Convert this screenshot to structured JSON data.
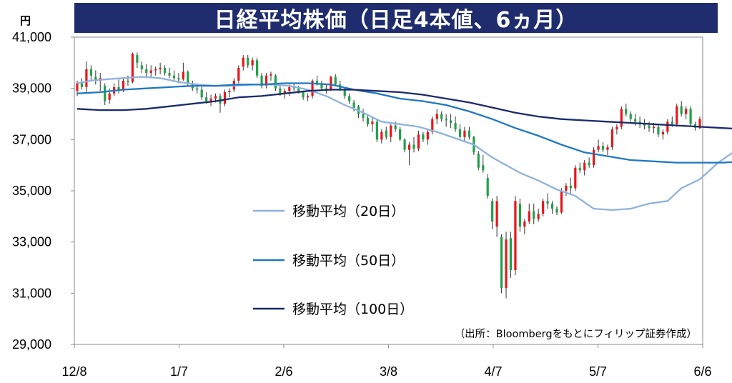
{
  "chart_data": {
    "type": "candlestick",
    "title": "日経平均株価（日足4本値、6ヵ月）",
    "y_unit": "円",
    "ylim": [
      29000,
      41000
    ],
    "y_ticks": [
      "41,000",
      "39,000",
      "37,000",
      "35,000",
      "33,000",
      "31,000",
      "29,000"
    ],
    "y_tick_values": [
      41000,
      39000,
      37000,
      35000,
      33000,
      31000,
      29000
    ],
    "x_ticks": [
      "12/8",
      "1/7",
      "2/6",
      "3/8",
      "4/7",
      "5/7",
      "6/6"
    ],
    "x_range": [
      "2024-12-08",
      "2025-06-06"
    ],
    "source": "（出所：Bloombergをもとにフィリップ証券作成）",
    "colors": {
      "up": "#e8161b",
      "down": "#21a14a",
      "ma20": "#8fb2dd",
      "ma50": "#1f78c1",
      "ma100": "#1b2a6b",
      "title_bg": "#1f2d6e"
    },
    "series": [
      {
        "name": "移動平均（20日）",
        "color": "#8fb2dd",
        "points": [
          [
            0,
            39200
          ],
          [
            3,
            39300
          ],
          [
            6,
            39350
          ],
          [
            10,
            39400
          ],
          [
            14,
            39450
          ],
          [
            18,
            39400
          ],
          [
            22,
            39250
          ],
          [
            26,
            39150
          ],
          [
            30,
            39100
          ],
          [
            34,
            39100
          ],
          [
            38,
            39150
          ],
          [
            42,
            39150
          ],
          [
            46,
            39100
          ],
          [
            50,
            38950
          ],
          [
            54,
            38700
          ],
          [
            58,
            38350
          ],
          [
            62,
            38050
          ],
          [
            66,
            37700
          ],
          [
            70,
            37600
          ],
          [
            74,
            37500
          ],
          [
            78,
            37300
          ],
          [
            82,
            37050
          ],
          [
            86,
            36800
          ],
          [
            90,
            36300
          ],
          [
            94,
            35900
          ],
          [
            96,
            35700
          ],
          [
            100,
            35400
          ],
          [
            104,
            35050
          ],
          [
            108,
            34800
          ],
          [
            112,
            34300
          ],
          [
            116,
            34250
          ],
          [
            120,
            34300
          ],
          [
            124,
            34500
          ],
          [
            128,
            34600
          ],
          [
            131,
            35100
          ],
          [
            135,
            35450
          ],
          [
            139,
            36100
          ],
          [
            143,
            36600
          ],
          [
            147,
            36900
          ],
          [
            151,
            37100
          ],
          [
            155,
            37300
          ],
          [
            159,
            37600
          ],
          [
            163,
            37750
          ]
        ]
      },
      {
        "name": "移動平均（50日）",
        "color": "#1f78c1",
        "points": [
          [
            0,
            38800
          ],
          [
            5,
            38850
          ],
          [
            10,
            38950
          ],
          [
            15,
            39000
          ],
          [
            20,
            39050
          ],
          [
            25,
            39100
          ],
          [
            30,
            39100
          ],
          [
            35,
            39150
          ],
          [
            40,
            39150
          ],
          [
            45,
            39200
          ],
          [
            50,
            39200
          ],
          [
            55,
            39150
          ],
          [
            60,
            38950
          ],
          [
            65,
            38800
          ],
          [
            70,
            38600
          ],
          [
            75,
            38500
          ],
          [
            80,
            38350
          ],
          [
            85,
            38100
          ],
          [
            90,
            37800
          ],
          [
            95,
            37450
          ],
          [
            100,
            37150
          ],
          [
            105,
            36800
          ],
          [
            110,
            36500
          ],
          [
            115,
            36350
          ],
          [
            120,
            36200
          ],
          [
            125,
            36150
          ],
          [
            130,
            36100
          ],
          [
            135,
            36100
          ],
          [
            140,
            36100
          ],
          [
            145,
            36150
          ],
          [
            150,
            36200
          ],
          [
            155,
            36200
          ],
          [
            163,
            36150
          ]
        ]
      },
      {
        "name": "移動平均（100日）",
        "color": "#1b2a6b",
        "points": [
          [
            0,
            38200
          ],
          [
            5,
            38150
          ],
          [
            10,
            38150
          ],
          [
            15,
            38200
          ],
          [
            20,
            38300
          ],
          [
            25,
            38400
          ],
          [
            30,
            38500
          ],
          [
            35,
            38650
          ],
          [
            40,
            38700
          ],
          [
            45,
            38800
          ],
          [
            50,
            38900
          ],
          [
            55,
            38950
          ],
          [
            60,
            38950
          ],
          [
            65,
            38900
          ],
          [
            70,
            38850
          ],
          [
            75,
            38750
          ],
          [
            80,
            38600
          ],
          [
            85,
            38450
          ],
          [
            90,
            38250
          ],
          [
            95,
            38050
          ],
          [
            100,
            37900
          ],
          [
            105,
            37800
          ],
          [
            110,
            37750
          ],
          [
            115,
            37700
          ],
          [
            120,
            37650
          ],
          [
            125,
            37600
          ],
          [
            130,
            37550
          ],
          [
            135,
            37500
          ],
          [
            140,
            37450
          ],
          [
            145,
            37400
          ],
          [
            150,
            37350
          ],
          [
            155,
            37300
          ],
          [
            163,
            37280
          ]
        ]
      }
    ],
    "candles": [
      [
        38900,
        39300,
        38700,
        39200
      ],
      [
        39200,
        39400,
        38950,
        39050
      ],
      [
        39050,
        40050,
        38850,
        39750
      ],
      [
        39750,
        39900,
        39300,
        39500
      ],
      [
        39450,
        39700,
        39150,
        39300
      ],
      [
        39300,
        39600,
        38900,
        39400
      ],
      [
        39100,
        39200,
        38350,
        38500
      ],
      [
        38550,
        39000,
        38400,
        38800
      ],
      [
        38800,
        39200,
        38700,
        39050
      ],
      [
        39050,
        39350,
        38800,
        38950
      ],
      [
        38950,
        39400,
        38850,
        39300
      ],
      [
        39300,
        39500,
        39100,
        39250
      ],
      [
        39250,
        40400,
        39200,
        40350
      ],
      [
        40300,
        40400,
        39800,
        40000
      ],
      [
        39900,
        40050,
        39600,
        39750
      ],
      [
        39750,
        39950,
        39400,
        39600
      ],
      [
        39600,
        39900,
        39400,
        39700
      ],
      [
        39700,
        39850,
        39500,
        39750
      ],
      [
        39750,
        40000,
        39550,
        39800
      ],
      [
        39800,
        39900,
        39500,
        39600
      ],
      [
        39600,
        39800,
        39400,
        39500
      ],
      [
        39500,
        39700,
        39300,
        39400
      ],
      [
        39400,
        39600,
        39200,
        39350
      ],
      [
        39350,
        40000,
        39300,
        39650
      ],
      [
        39650,
        39700,
        39100,
        39200
      ],
      [
        39200,
        39300,
        38900,
        39000
      ],
      [
        39000,
        39200,
        38800,
        38950
      ],
      [
        38950,
        39050,
        38550,
        38650
      ],
      [
        38650,
        38850,
        38400,
        38500
      ],
      [
        38500,
        38750,
        38300,
        38600
      ],
      [
        38600,
        38800,
        38450,
        38700
      ],
      [
        38700,
        38800,
        38050,
        38400
      ],
      [
        38400,
        38950,
        38300,
        38850
      ],
      [
        38850,
        39000,
        38650,
        38900
      ],
      [
        38950,
        39400,
        38850,
        39300
      ],
      [
        39300,
        39900,
        39200,
        39800
      ],
      [
        39850,
        40300,
        39700,
        40200
      ],
      [
        40200,
        40300,
        39800,
        39900
      ],
      [
        39900,
        40200,
        39700,
        40100
      ],
      [
        40100,
        40200,
        39400,
        39500
      ],
      [
        39500,
        39600,
        39000,
        39100
      ],
      [
        39100,
        39600,
        39000,
        39500
      ],
      [
        39500,
        39650,
        39300,
        39550
      ],
      [
        39500,
        39550,
        38900,
        39000
      ],
      [
        39000,
        39100,
        38700,
        38800
      ],
      [
        38800,
        39000,
        38600,
        38900
      ],
      [
        38900,
        39150,
        38700,
        39050
      ],
      [
        39050,
        39200,
        38900,
        39000
      ],
      [
        39000,
        39100,
        38800,
        38850
      ],
      [
        38850,
        38900,
        38550,
        38650
      ],
      [
        38650,
        38800,
        38500,
        38700
      ],
      [
        38700,
        39350,
        38600,
        39300
      ],
      [
        39300,
        39500,
        39100,
        39200
      ],
      [
        39200,
        39300,
        38900,
        39000
      ],
      [
        39000,
        39150,
        38800,
        38950
      ],
      [
        38950,
        39500,
        38900,
        39450
      ],
      [
        39450,
        39550,
        39100,
        39150
      ],
      [
        39150,
        39300,
        38900,
        38950
      ],
      [
        38950,
        39050,
        38600,
        38700
      ],
      [
        38700,
        38800,
        38400,
        38500
      ],
      [
        38450,
        38550,
        38100,
        38250
      ],
      [
        38300,
        38350,
        37850,
        38000
      ],
      [
        38000,
        38200,
        37700,
        37850
      ],
      [
        37850,
        38000,
        37500,
        37600
      ],
      [
        37600,
        37850,
        37300,
        37700
      ],
      [
        37700,
        37800,
        36900,
        37000
      ],
      [
        37000,
        37400,
        36850,
        37300
      ],
      [
        37350,
        37500,
        37000,
        37100
      ],
      [
        37100,
        37600,
        36900,
        37550
      ],
      [
        37550,
        37700,
        37300,
        37400
      ],
      [
        37400,
        37500,
        36950,
        37000
      ],
      [
        37000,
        37050,
        36500,
        36600
      ],
      [
        36600,
        36900,
        36000,
        36800
      ],
      [
        36800,
        37100,
        36500,
        36650
      ],
      [
        36650,
        37350,
        36550,
        37200
      ],
      [
        37200,
        37300,
        36900,
        37000
      ],
      [
        37000,
        37400,
        36800,
        37300
      ],
      [
        37300,
        37900,
        37200,
        37800
      ],
      [
        37800,
        38200,
        37600,
        38000
      ],
      [
        38000,
        38100,
        37700,
        37800
      ],
      [
        37800,
        38000,
        37500,
        37750
      ],
      [
        37750,
        38000,
        37450,
        37650
      ],
      [
        37650,
        37900,
        37300,
        37400
      ],
      [
        37400,
        37600,
        37050,
        37100
      ],
      [
        37100,
        37500,
        36900,
        37350
      ],
      [
        37350,
        37500,
        37000,
        37100
      ],
      [
        37100,
        37150,
        36400,
        36500
      ],
      [
        36450,
        36550,
        35800,
        35900
      ],
      [
        36000,
        36400,
        35700,
        35800
      ],
      [
        35500,
        35650,
        34700,
        34800
      ],
      [
        34600,
        34700,
        33500,
        33800
      ],
      [
        33600,
        34800,
        33200,
        34600
      ],
      [
        33200,
        33300,
        31000,
        31200
      ],
      [
        31200,
        33400,
        30800,
        33100
      ],
      [
        33150,
        33400,
        31600,
        31900
      ],
      [
        31900,
        34800,
        31700,
        34600
      ],
      [
        34500,
        34700,
        33400,
        33600
      ],
      [
        33600,
        33900,
        33300,
        33800
      ],
      [
        33800,
        34500,
        33700,
        34200
      ],
      [
        34200,
        34500,
        33700,
        33900
      ],
      [
        33900,
        34300,
        33800,
        34100
      ],
      [
        34100,
        34700,
        34000,
        34600
      ],
      [
        34600,
        34900,
        34300,
        34500
      ],
      [
        34500,
        34600,
        34100,
        34300
      ],
      [
        34300,
        34400,
        34050,
        34150
      ],
      [
        34150,
        35100,
        34100,
        35000
      ],
      [
        35000,
        35300,
        34800,
        35200
      ],
      [
        35200,
        35500,
        34900,
        35100
      ],
      [
        35100,
        36000,
        35000,
        35900
      ],
      [
        35900,
        36100,
        35700,
        35800
      ],
      [
        35800,
        36200,
        35600,
        36100
      ],
      [
        36100,
        36300,
        35900,
        36000
      ],
      [
        36000,
        36700,
        35900,
        36600
      ],
      [
        36600,
        37000,
        36500,
        36750
      ],
      [
        36750,
        36900,
        36500,
        36600
      ],
      [
        36600,
        36800,
        36400,
        36700
      ],
      [
        36700,
        37500,
        36600,
        37400
      ],
      [
        37400,
        37600,
        37200,
        37500
      ],
      [
        37500,
        38300,
        37400,
        38200
      ],
      [
        38200,
        38400,
        37900,
        38000
      ],
      [
        38000,
        38100,
        37700,
        37800
      ],
      [
        37800,
        38000,
        37550,
        37700
      ],
      [
        37700,
        37900,
        37450,
        37600
      ],
      [
        37600,
        37800,
        37400,
        37550
      ],
      [
        37550,
        37700,
        37300,
        37450
      ],
      [
        37450,
        37650,
        37250,
        37500
      ],
      [
        37500,
        37600,
        37100,
        37200
      ],
      [
        37200,
        37400,
        37000,
        37300
      ],
      [
        37300,
        37800,
        37200,
        37700
      ],
      [
        37700,
        37900,
        37500,
        37600
      ],
      [
        37600,
        38400,
        37500,
        38300
      ],
      [
        38300,
        38500,
        37900,
        38000
      ],
      [
        38000,
        38300,
        37800,
        38200
      ],
      [
        38200,
        38300,
        37500,
        37600
      ],
      [
        37600,
        37700,
        37350,
        37450
      ],
      [
        37450,
        37900,
        37400,
        37800
      ]
    ]
  },
  "legend": [
    {
      "label": "移動平均（20日）",
      "color": "#8fb2dd"
    },
    {
      "label": "移動平均（50日）",
      "color": "#1f78c1"
    },
    {
      "label": "移動平均（100日）",
      "color": "#1b2a6b"
    }
  ]
}
